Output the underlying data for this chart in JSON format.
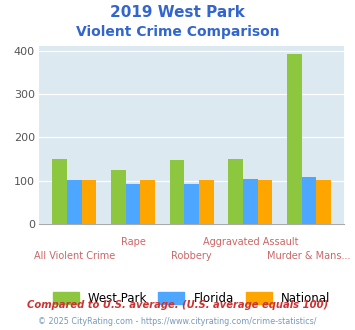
{
  "title_line1": "2019 West Park",
  "title_line2": "Violent Crime Comparison",
  "categories": [
    "All Violent Crime",
    "Rape",
    "Robbery",
    "Aggravated Assault",
    "Murder & Mans..."
  ],
  "series": {
    "West Park": [
      150,
      126,
      148,
      150,
      393
    ],
    "Florida": [
      102,
      93,
      94,
      105,
      108
    ],
    "National": [
      102,
      102,
      103,
      103,
      102
    ]
  },
  "colors": {
    "West Park": "#8dc63f",
    "Florida": "#4da6ff",
    "National": "#ffa500"
  },
  "ylim": [
    0,
    410
  ],
  "yticks": [
    0,
    100,
    200,
    300,
    400
  ],
  "plot_bg": "#dce9f0",
  "fig_bg": "#ffffff",
  "title_color": "#3366cc",
  "xlabel_color": "#cc6666",
  "footnote1": "Compared to U.S. average. (U.S. average equals 100)",
  "footnote2": "© 2025 CityRating.com - https://www.cityrating.com/crime-statistics/",
  "footnote1_color": "#cc3333",
  "footnote2_color": "#7799bb",
  "bar_width": 0.25
}
